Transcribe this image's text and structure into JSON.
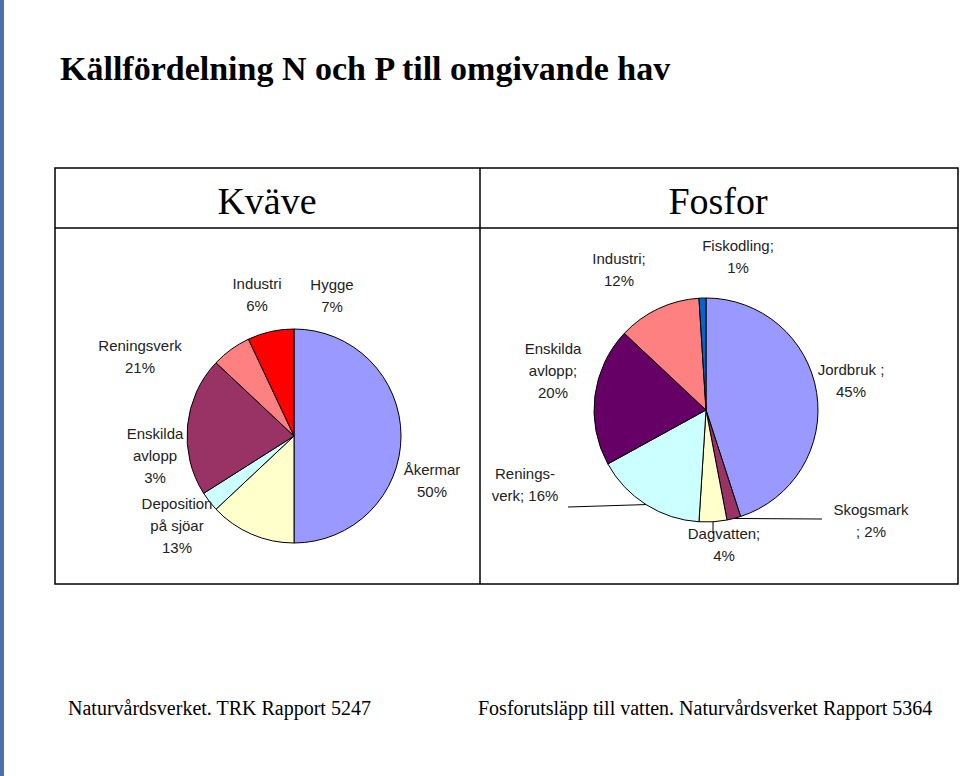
{
  "title": "Källfördelning N och P till omgivande hav",
  "chart_data": [
    {
      "type": "pie",
      "title": "Kväve",
      "categories": [
        "Åkermar",
        "Deposition på sjöar",
        "Enskilda avlopp",
        "Reningsverk",
        "Industri",
        "Hygge"
      ],
      "values": [
        50,
        13,
        3,
        21,
        6,
        7
      ],
      "value_labels": [
        "50%",
        "13%",
        "3%",
        "21%",
        "6%",
        "7%"
      ],
      "colors": [
        "#9999FF",
        "#FFFFCC",
        "#CCFFFF",
        "#993366",
        "#FF8080",
        "#FF0000"
      ],
      "data_labels": true,
      "source": "Naturvårdsverket. TRK Rapport 5247"
    },
    {
      "type": "pie",
      "title": "Fosfor",
      "categories": [
        "Jordbruk ;",
        "Skogsmark ;",
        "Dagvatten;",
        "Renings-verk;",
        "Enskilda avlopp;",
        "Industri;",
        "Fiskodling;"
      ],
      "values": [
        45,
        2,
        4,
        16,
        20,
        12,
        1
      ],
      "value_labels": [
        "45%",
        "2%",
        "4%",
        "16%",
        "20%",
        "12%",
        "1%"
      ],
      "colors": [
        "#9999FF",
        "#993366",
        "#FFFFCC",
        "#CCFFFF",
        "#660066",
        "#FF8080",
        "#0066CC"
      ],
      "data_labels": true,
      "source": "Fosforutsläpp till vatten. Naturvårdsverket Rapport 5364"
    }
  ]
}
